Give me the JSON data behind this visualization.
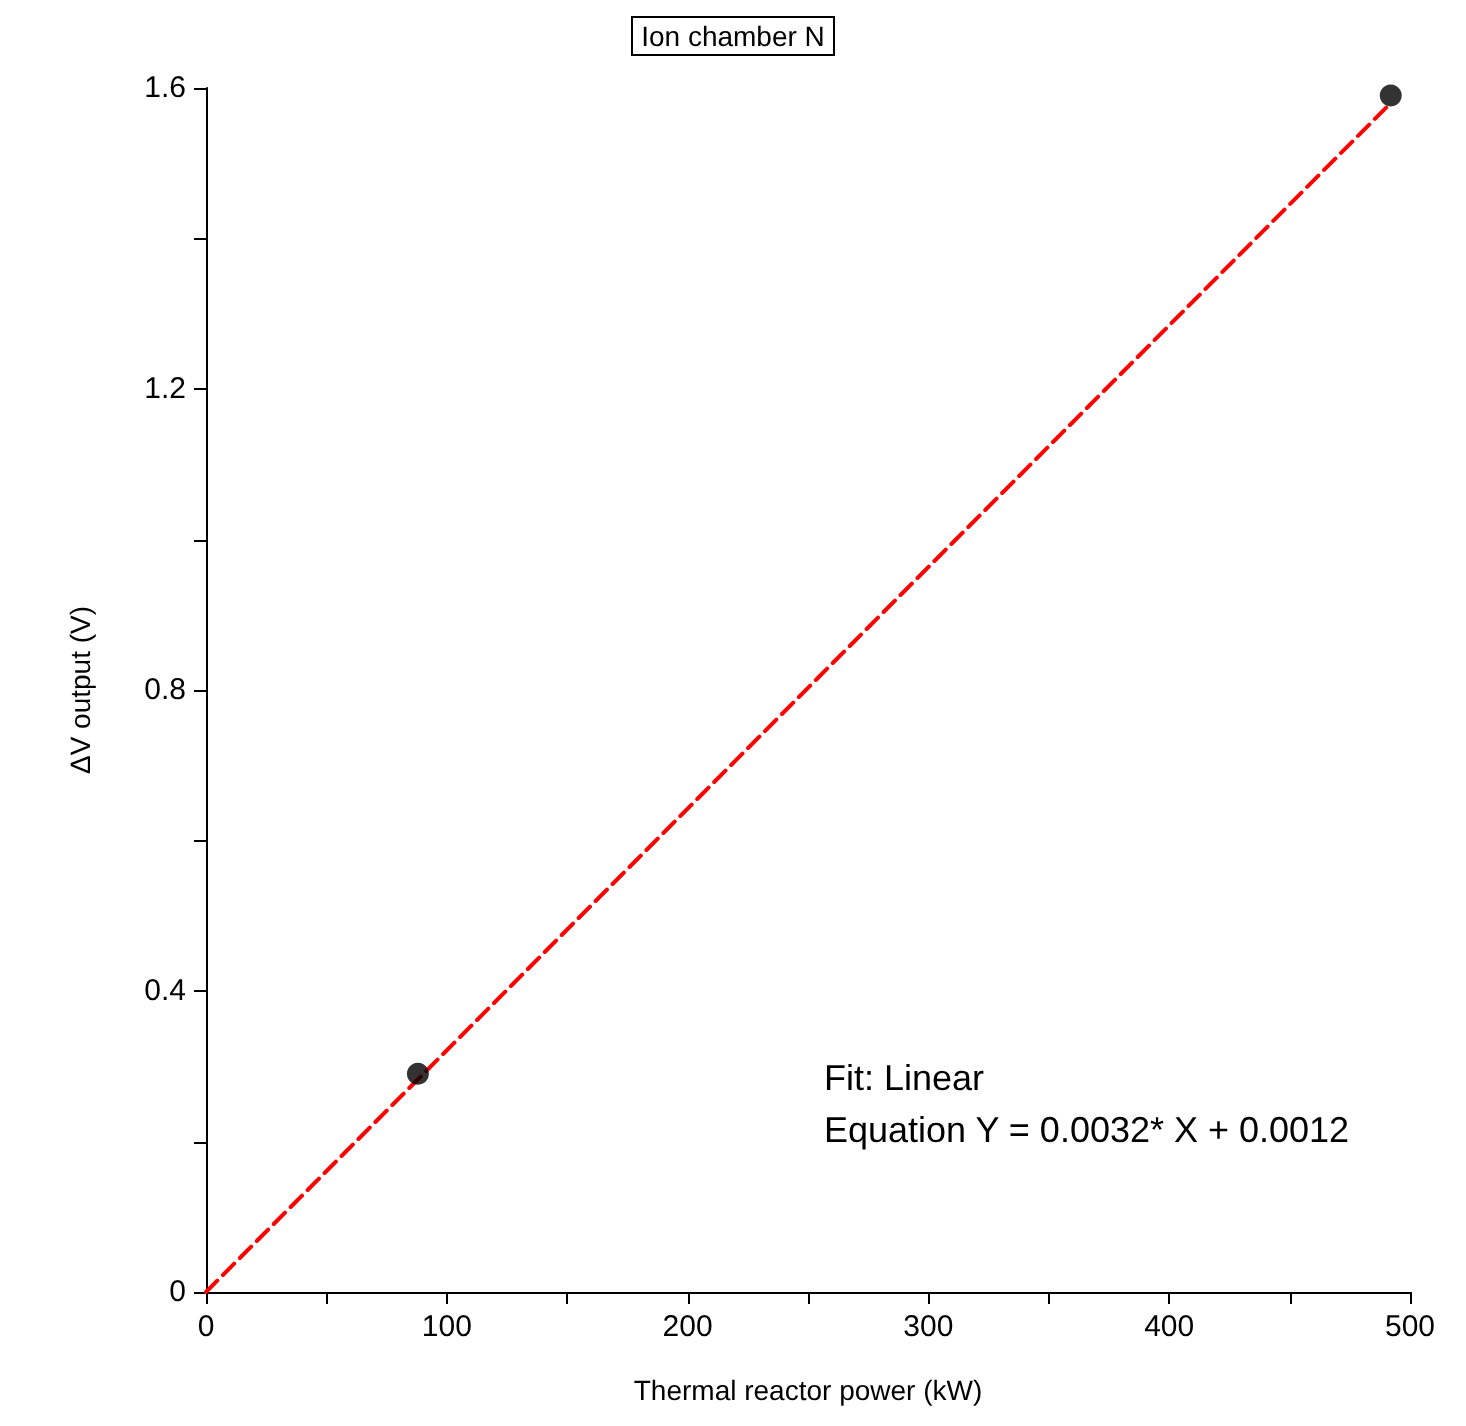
{
  "chart_data": {
    "type": "scatter",
    "title": "Ion chamber N",
    "xlabel": "Thermal reactor power (kW)",
    "ylabel": "ΔV output (V)",
    "x": [
      88,
      492
    ],
    "series": [
      {
        "color": "#000000",
        "marker": "circle",
        "values": [
          0.29,
          1.59
        ]
      },
      {
        "type": "line",
        "color": "#ff0000",
        "line_style": "dashed",
        "marker": "none",
        "x": [
          0,
          492
        ],
        "values": [
          0,
          1.58
        ]
      }
    ],
    "xlim": [
      0,
      500
    ],
    "xticks": [
      0,
      100,
      200,
      300,
      400,
      500
    ],
    "ylim": [
      0,
      1.6
    ],
    "yticks": [
      0,
      0.4,
      0.8,
      1.2,
      1.6
    ],
    "grid": false,
    "annotations": [
      "Fit: Linear",
      "Equation Y = 0.0032* X + 0.0012"
    ]
  }
}
